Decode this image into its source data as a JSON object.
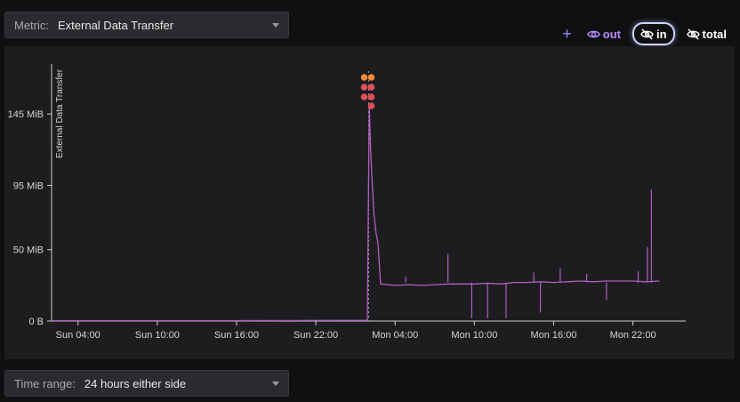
{
  "metric": {
    "label": "Metric:",
    "value": "External Data Transfer"
  },
  "toggles": {
    "add": "+",
    "out": "out",
    "in": "in",
    "total": "total"
  },
  "time_range": {
    "label": "Time range:",
    "value": "24 hours either side"
  },
  "colors": {
    "series": "#b060c0",
    "marker_top": "#f08a3c",
    "marker_bottom": "#e0505a",
    "accent": "#8f8cff"
  },
  "chart_data": {
    "type": "line",
    "ylabel": "External Data Transfer",
    "y_ticks": [
      "0 B",
      "50 MiB",
      "95 MiB",
      "145 MiB"
    ],
    "y_tick_values": [
      0,
      50,
      95,
      145
    ],
    "ylim": [
      0,
      180
    ],
    "x_ticks": [
      "Sun 04:00",
      "Sun 10:00",
      "Sun 16:00",
      "Sun 22:00",
      "Mon 04:00",
      "Mon 10:00",
      "Mon 16:00",
      "Mon 22:00"
    ],
    "x_tick_hours": [
      4,
      10,
      16,
      22,
      28,
      34,
      40,
      46
    ],
    "xlim_hours": [
      2,
      50
    ],
    "grid": false,
    "event_hour": 26,
    "series": [
      {
        "points": [
          [
            2,
            0.3
          ],
          [
            8,
            0.3
          ],
          [
            14,
            0.3
          ],
          [
            20,
            0.4
          ],
          [
            25.9,
            0.5
          ],
          [
            26.05,
            150
          ],
          [
            26.15,
            120
          ],
          [
            26.25,
            100
          ],
          [
            26.4,
            75
          ],
          [
            26.55,
            62
          ],
          [
            26.7,
            55
          ],
          [
            26.9,
            26
          ],
          [
            28,
            25
          ],
          [
            29,
            25.5
          ],
          [
            30,
            25
          ],
          [
            31,
            25.5
          ],
          [
            32,
            26
          ],
          [
            33,
            26
          ],
          [
            34,
            26
          ],
          [
            35,
            26.5
          ],
          [
            36,
            26
          ],
          [
            37,
            27
          ],
          [
            38,
            27
          ],
          [
            39,
            27.5
          ],
          [
            40,
            27
          ],
          [
            41,
            27.5
          ],
          [
            42,
            28
          ],
          [
            43,
            27.5
          ],
          [
            44,
            28
          ],
          [
            45,
            28
          ],
          [
            46,
            28
          ],
          [
            47,
            27.5
          ],
          [
            48,
            28
          ]
        ],
        "spikes": [
          [
            28.8,
            31
          ],
          [
            32.0,
            47
          ],
          [
            33.8,
            2
          ],
          [
            35.0,
            2
          ],
          [
            36.4,
            2
          ],
          [
            38.5,
            34
          ],
          [
            39.0,
            6
          ],
          [
            40.5,
            37
          ],
          [
            42.5,
            33
          ],
          [
            44.0,
            15
          ],
          [
            46.4,
            35
          ],
          [
            47.1,
            52
          ],
          [
            47.4,
            92
          ]
        ]
      }
    ],
    "markers": {
      "hour": 26,
      "columns": 2,
      "rows": [
        3,
        3,
        4
      ]
    }
  }
}
